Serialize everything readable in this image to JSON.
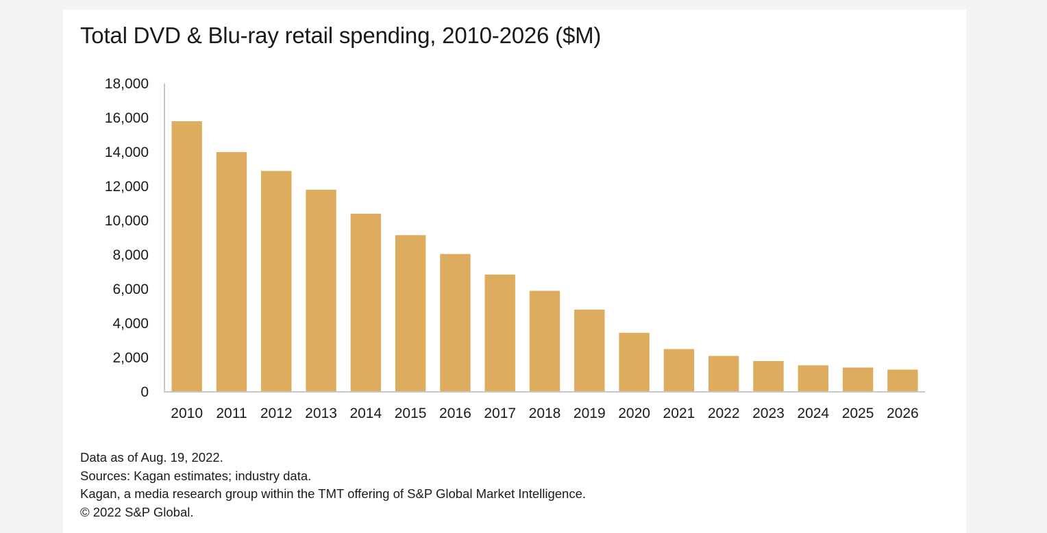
{
  "chart_data": {
    "type": "bar",
    "title": "Total DVD & Blu-ray retail spending, 2010-2026 ($M)",
    "xlabel": "",
    "ylabel": "",
    "categories": [
      "2010",
      "2011",
      "2012",
      "2013",
      "2014",
      "2015",
      "2016",
      "2017",
      "2018",
      "2019",
      "2020",
      "2021",
      "2022",
      "2023",
      "2024",
      "2025",
      "2026"
    ],
    "values": [
      15800,
      14000,
      12900,
      11800,
      10400,
      9150,
      8050,
      6850,
      5900,
      4800,
      3450,
      2500,
      2100,
      1800,
      1550,
      1420,
      1300
    ],
    "ylim": [
      0,
      18000
    ],
    "yticks": [
      0,
      2000,
      4000,
      6000,
      8000,
      10000,
      12000,
      14000,
      16000,
      18000
    ],
    "ytick_labels": [
      "0",
      "2,000",
      "4,000",
      "6,000",
      "8,000",
      "10,000",
      "12,000",
      "14,000",
      "16,000",
      "18,000"
    ],
    "bar_color": "#deac5f",
    "axis_color": "#c8c8c8",
    "grid": false,
    "legend": "none"
  },
  "notes": [
    "Data as of Aug. 19, 2022.",
    "Sources: Kagan estimates; industry data.",
    "Kagan, a media research group within the TMT offering of S&P Global Market Intelligence.",
    "© 2022 S&P Global."
  ]
}
